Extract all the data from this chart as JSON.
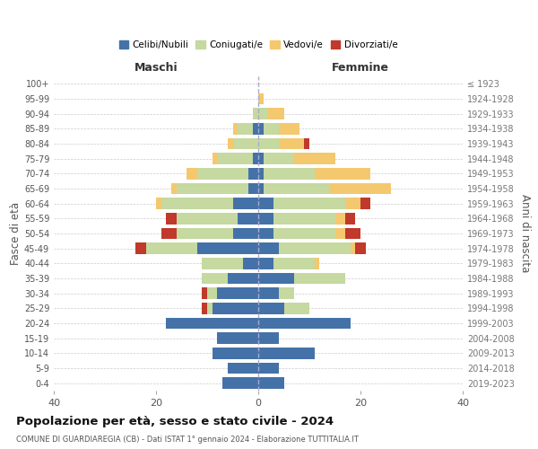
{
  "age_groups": [
    "0-4",
    "5-9",
    "10-14",
    "15-19",
    "20-24",
    "25-29",
    "30-34",
    "35-39",
    "40-44",
    "45-49",
    "50-54",
    "55-59",
    "60-64",
    "65-69",
    "70-74",
    "75-79",
    "80-84",
    "85-89",
    "90-94",
    "95-99",
    "100+"
  ],
  "birth_years": [
    "2019-2023",
    "2014-2018",
    "2009-2013",
    "2004-2008",
    "1999-2003",
    "1994-1998",
    "1989-1993",
    "1984-1988",
    "1979-1983",
    "1974-1978",
    "1969-1973",
    "1964-1968",
    "1959-1963",
    "1954-1958",
    "1949-1953",
    "1944-1948",
    "1939-1943",
    "1934-1938",
    "1929-1933",
    "1924-1928",
    "≤ 1923"
  ],
  "maschi": {
    "celibi": [
      7,
      6,
      9,
      8,
      18,
      9,
      8,
      6,
      3,
      12,
      5,
      4,
      5,
      2,
      2,
      1,
      0,
      1,
      0,
      0,
      0
    ],
    "coniugati": [
      0,
      0,
      0,
      0,
      0,
      1,
      2,
      5,
      8,
      10,
      11,
      12,
      14,
      14,
      10,
      7,
      5,
      3,
      1,
      0,
      0
    ],
    "vedovi": [
      0,
      0,
      0,
      0,
      0,
      0,
      0,
      0,
      0,
      0,
      0,
      0,
      1,
      1,
      2,
      1,
      1,
      1,
      0,
      0,
      0
    ],
    "divorziati": [
      0,
      0,
      0,
      0,
      0,
      1,
      1,
      0,
      0,
      2,
      3,
      2,
      0,
      0,
      0,
      0,
      0,
      0,
      0,
      0,
      0
    ]
  },
  "femmine": {
    "nubili": [
      5,
      4,
      11,
      4,
      18,
      5,
      4,
      7,
      3,
      4,
      3,
      3,
      3,
      1,
      1,
      1,
      0,
      1,
      0,
      0,
      0
    ],
    "coniugate": [
      0,
      0,
      0,
      0,
      0,
      5,
      3,
      10,
      8,
      14,
      12,
      12,
      14,
      13,
      10,
      6,
      4,
      3,
      2,
      0,
      0
    ],
    "vedove": [
      0,
      0,
      0,
      0,
      0,
      0,
      0,
      0,
      1,
      1,
      2,
      2,
      3,
      12,
      11,
      8,
      5,
      4,
      3,
      1,
      0
    ],
    "divorziate": [
      0,
      0,
      0,
      0,
      0,
      0,
      0,
      0,
      0,
      2,
      3,
      2,
      2,
      0,
      0,
      0,
      1,
      0,
      0,
      0,
      0
    ]
  },
  "colors": {
    "celibi": "#4472a8",
    "coniugati": "#c5d9a0",
    "vedovi": "#f4c86e",
    "divorziati": "#c0392b"
  },
  "xlim": 40,
  "title": "Popolazione per età, sesso e stato civile - 2024",
  "subtitle": "COMUNE DI GUARDIAREGIA (CB) - Dati ISTAT 1° gennaio 2024 - Elaborazione TUTTITALIA.IT",
  "ylabel_left": "Fasce di età",
  "ylabel_right": "Anni di nascita",
  "xlabel_left": "Maschi",
  "xlabel_right": "Femmine",
  "legend_labels": [
    "Celibi/Nubili",
    "Coniugati/e",
    "Vedovi/e",
    "Divorziati/e"
  ]
}
